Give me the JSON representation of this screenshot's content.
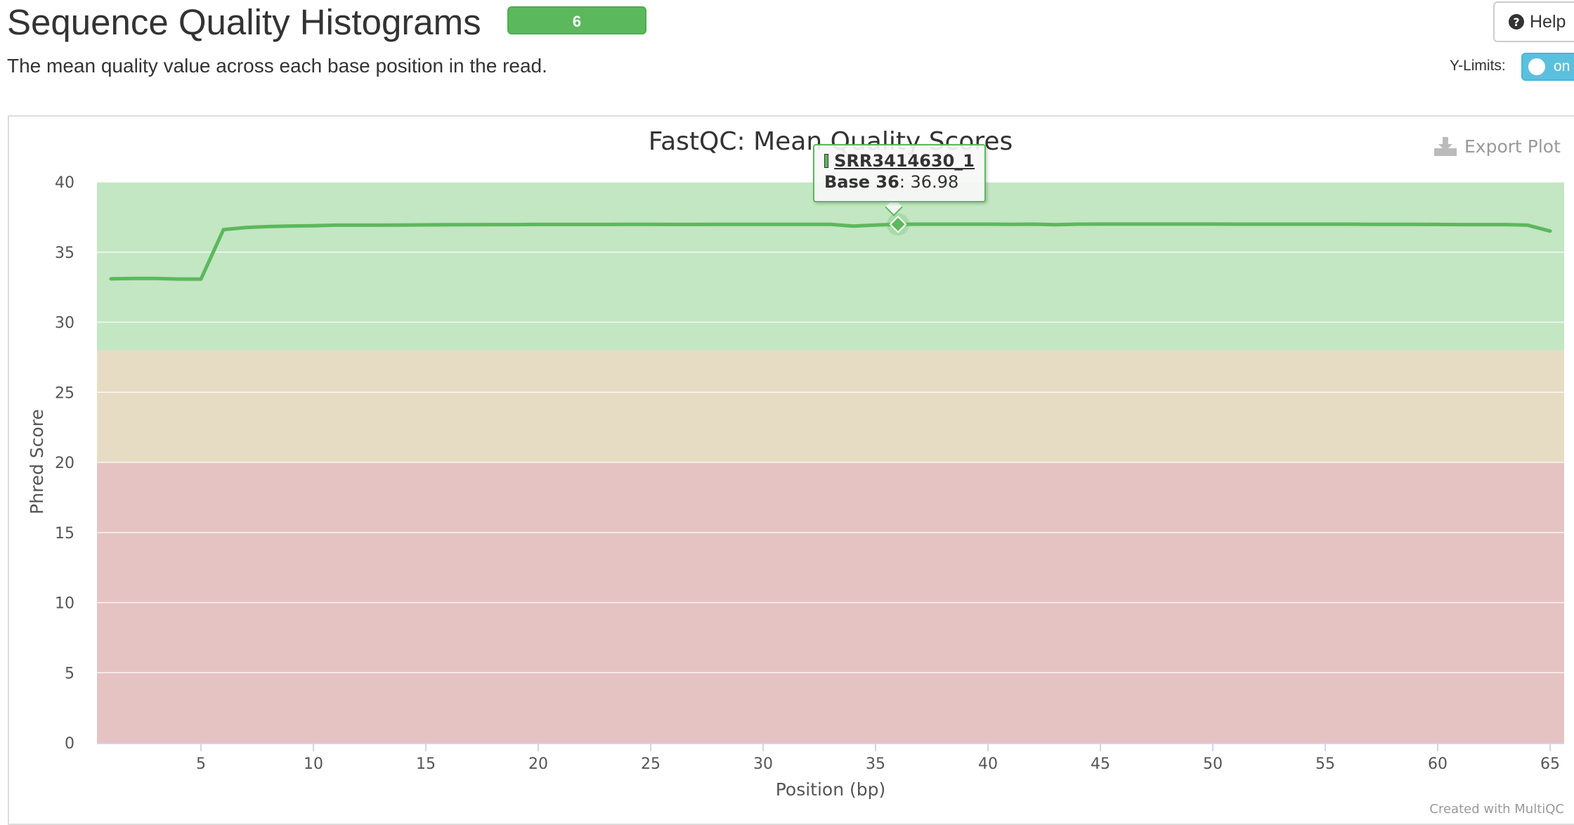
{
  "header": {
    "title": "Sequence Quality Histograms",
    "badge": "6",
    "subtitle": "The mean quality value across each base position in the read.",
    "help_label": "Help",
    "ylimits_label": "Y-Limits:",
    "ylimits_toggle": "on"
  },
  "plot": {
    "export_label": "Export Plot",
    "credit": "Created with MultiQC"
  },
  "tooltip": {
    "sample": "SRR3414630_1",
    "label": "Base 36",
    "value": ": 36.98"
  },
  "colors": {
    "line": "#5cb85c",
    "zone_good": "#c3e6c3",
    "zone_warn": "#e6dcc3",
    "zone_fail": "#e6c3c3",
    "badge": "#5cb85c",
    "toggle": "#5bc0de"
  },
  "chart_data": {
    "type": "line",
    "title": "FastQC: Mean Quality Scores",
    "xlabel": "Position (bp)",
    "ylabel": "Phred Score",
    "xlim": [
      1,
      65
    ],
    "ylim": [
      0,
      40
    ],
    "xticks": [
      5,
      10,
      15,
      20,
      25,
      30,
      35,
      40,
      45,
      50,
      55,
      60,
      65
    ],
    "yticks": [
      0,
      5,
      10,
      15,
      20,
      25,
      30,
      35,
      40
    ],
    "grid": true,
    "background_bands": [
      {
        "from": 28,
        "to": 40,
        "color": "#c3e6c3"
      },
      {
        "from": 20,
        "to": 28,
        "color": "#e6dcc3"
      },
      {
        "from": 0,
        "to": 20,
        "color": "#e6c3c3"
      }
    ],
    "series": [
      {
        "name": "SRR3414630_1",
        "color": "#5cb85c",
        "x": [
          1,
          2,
          3,
          4,
          5,
          6,
          7,
          8,
          9,
          10,
          11,
          12,
          13,
          14,
          15,
          16,
          17,
          18,
          19,
          20,
          21,
          22,
          23,
          24,
          25,
          26,
          27,
          28,
          29,
          30,
          31,
          32,
          33,
          34,
          35,
          36,
          37,
          38,
          39,
          40,
          41,
          42,
          43,
          44,
          45,
          46,
          47,
          48,
          49,
          50,
          51,
          52,
          53,
          54,
          55,
          56,
          57,
          58,
          59,
          60,
          61,
          62,
          63,
          64,
          65
        ],
        "y": [
          33.1,
          33.12,
          33.12,
          33.08,
          33.08,
          36.6,
          36.75,
          36.82,
          36.86,
          36.88,
          36.92,
          36.92,
          36.92,
          36.93,
          36.94,
          36.95,
          36.95,
          36.96,
          36.96,
          36.97,
          36.97,
          36.97,
          36.97,
          36.98,
          36.98,
          36.97,
          36.97,
          36.98,
          36.98,
          36.98,
          36.98,
          36.98,
          36.98,
          36.85,
          36.93,
          36.98,
          36.99,
          36.99,
          36.99,
          36.99,
          36.98,
          36.99,
          36.95,
          36.99,
          37.0,
          37.0,
          37.0,
          37.0,
          37.0,
          37.0,
          36.99,
          36.99,
          36.99,
          36.99,
          36.99,
          36.99,
          36.98,
          36.98,
          36.98,
          36.97,
          36.96,
          36.96,
          36.96,
          36.92,
          36.5
        ]
      }
    ],
    "highlight": {
      "x": 36,
      "y": 36.98
    }
  }
}
